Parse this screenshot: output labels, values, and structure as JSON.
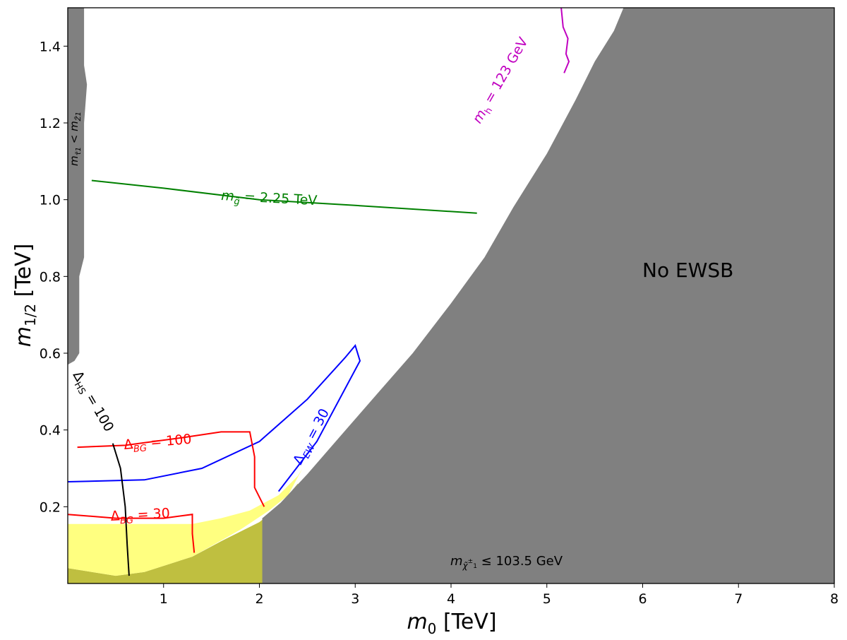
{
  "chart_data": {
    "type": "contour",
    "xlabel": "m0 [TeV]",
    "ylabel": "m1/2 [TeV]",
    "xlim": [
      0,
      8
    ],
    "ylim": [
      0,
      1.5
    ],
    "x_ticks": [
      {
        "value": 1,
        "label": "1"
      },
      {
        "value": 2,
        "label": "2"
      },
      {
        "value": 3,
        "label": "3"
      },
      {
        "value": 4,
        "label": "4"
      },
      {
        "value": 5,
        "label": "5"
      },
      {
        "value": 6,
        "label": "6"
      },
      {
        "value": 7,
        "label": "7"
      },
      {
        "value": 8,
        "label": "8"
      }
    ],
    "y_ticks": [
      {
        "value": 0.2,
        "label": "0.2"
      },
      {
        "value": 0.4,
        "label": "0.4"
      },
      {
        "value": 0.6,
        "label": "0.6"
      },
      {
        "value": 0.8,
        "label": "0.8"
      },
      {
        "value": 1.0,
        "label": "1.0"
      },
      {
        "value": 1.2,
        "label": "1.2"
      },
      {
        "value": 1.4,
        "label": "1.4"
      }
    ],
    "regions": [
      {
        "name": "no-ewsb",
        "label": "No EWSB",
        "color": "#808080",
        "boundary": [
          [
            2.03,
            0.17
          ],
          [
            2.22,
            0.21
          ],
          [
            2.5,
            0.285
          ],
          [
            2.9,
            0.4
          ],
          [
            3.25,
            0.5
          ],
          [
            3.6,
            0.6
          ],
          [
            4.0,
            0.73
          ],
          [
            4.35,
            0.85
          ],
          [
            4.65,
            0.98
          ],
          [
            5.0,
            1.12
          ],
          [
            5.3,
            1.26
          ],
          [
            5.5,
            1.36
          ],
          [
            5.7,
            1.44
          ],
          [
            5.8,
            1.5
          ]
        ]
      },
      {
        "name": "chargino-limit",
        "label": "m χ̃±1 ≤ 103.5 GeV",
        "color": "#bfbf40",
        "upper_m12": 0.105
      },
      {
        "name": "stau-lsp",
        "label": "m τ̃1 < m Z̃1",
        "color": "#808080",
        "upper_m0": 0.17
      },
      {
        "name": "allowed-yellow",
        "color": "#ffff80"
      }
    ],
    "contours": [
      {
        "name": "mgluino",
        "label": "m g̃ = 2.25 TeV",
        "color": "#008000",
        "points": [
          [
            0.25,
            1.05
          ],
          [
            1.0,
            1.03
          ],
          [
            2.0,
            1.0
          ],
          [
            3.0,
            0.985
          ],
          [
            4.27,
            0.965
          ]
        ]
      },
      {
        "name": "mhiggs",
        "label": "m h = 123 GeV",
        "color": "#c000c0",
        "points": [
          [
            5.15,
            1.5
          ],
          [
            5.17,
            1.45
          ],
          [
            5.22,
            1.42
          ],
          [
            5.2,
            1.38
          ],
          [
            5.23,
            1.36
          ],
          [
            5.18,
            1.33
          ]
        ]
      },
      {
        "name": "delta-ew-30",
        "label": "Δ EW = 30",
        "color": "#0000ff",
        "points": [
          [
            0.0,
            0.265
          ],
          [
            0.8,
            0.27
          ],
          [
            1.4,
            0.3
          ],
          [
            2.0,
            0.37
          ],
          [
            2.5,
            0.48
          ],
          [
            2.9,
            0.59
          ],
          [
            3.0,
            0.62
          ],
          [
            3.05,
            0.58
          ],
          [
            2.6,
            0.37
          ],
          [
            2.2,
            0.24
          ]
        ]
      },
      {
        "name": "delta-bg-100",
        "label": "Δ BG = 100",
        "color": "#ff0000",
        "points": [
          [
            0.1,
            0.355
          ],
          [
            0.6,
            0.36
          ],
          [
            1.2,
            0.38
          ],
          [
            1.6,
            0.395
          ],
          [
            1.9,
            0.395
          ],
          [
            1.95,
            0.33
          ],
          [
            1.95,
            0.25
          ],
          [
            2.05,
            0.2
          ]
        ]
      },
      {
        "name": "delta-bg-30",
        "label": "Δ BG = 30",
        "color": "#ff0000",
        "points": [
          [
            0.0,
            0.18
          ],
          [
            0.5,
            0.17
          ],
          [
            1.0,
            0.17
          ],
          [
            1.3,
            0.18
          ],
          [
            1.3,
            0.13
          ],
          [
            1.32,
            0.08
          ]
        ]
      },
      {
        "name": "delta-hs-100",
        "label": "Δ HS = 100",
        "color": "#000000",
        "points": [
          [
            0.47,
            0.365
          ],
          [
            0.55,
            0.3
          ],
          [
            0.6,
            0.2
          ],
          [
            0.62,
            0.1
          ],
          [
            0.64,
            0.02
          ]
        ]
      }
    ]
  }
}
